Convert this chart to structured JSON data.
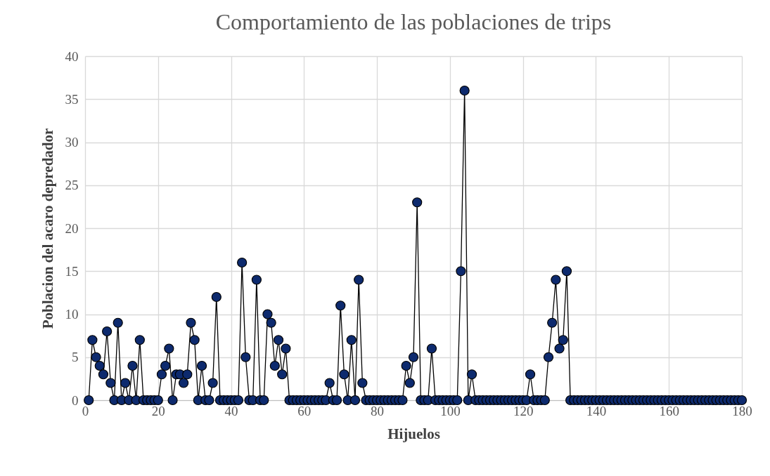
{
  "chart_data": {
    "type": "line",
    "title": "Comportamiento de las poblaciones de trips",
    "xlabel": "Hijuelos",
    "ylabel": "Poblacion del acaro depredador",
    "x": [
      1,
      2,
      3,
      4,
      5,
      6,
      7,
      8,
      9,
      10,
      11,
      12,
      13,
      14,
      15,
      16,
      17,
      18,
      19,
      20,
      21,
      22,
      23,
      24,
      25,
      26,
      27,
      28,
      29,
      30,
      31,
      32,
      33,
      34,
      35,
      36,
      37,
      38,
      39,
      40,
      41,
      42,
      43,
      44,
      45,
      46,
      47,
      48,
      49,
      50,
      51,
      52,
      53,
      54,
      55,
      56,
      57,
      58,
      59,
      60,
      61,
      62,
      63,
      64,
      65,
      66,
      67,
      68,
      69,
      70,
      71,
      72,
      73,
      74,
      75,
      76,
      77,
      78,
      79,
      80,
      81,
      82,
      83,
      84,
      85,
      86,
      87,
      88,
      89,
      90,
      91,
      92,
      93,
      94,
      95,
      96,
      97,
      98,
      99,
      100,
      101,
      102,
      103,
      104,
      105,
      106,
      107,
      108,
      109,
      110,
      111,
      112,
      113,
      114,
      115,
      116,
      117,
      118,
      119,
      120,
      121,
      122,
      123,
      124,
      125,
      126,
      127,
      128,
      129,
      130,
      131,
      132,
      133,
      134,
      135,
      136,
      137,
      138,
      139,
      140,
      141,
      142,
      143,
      144,
      145,
      146,
      147,
      148,
      149,
      150,
      151,
      152,
      153,
      154,
      155,
      156,
      157,
      158,
      159,
      160,
      161,
      162,
      163,
      164,
      165,
      166,
      167,
      168,
      169,
      170,
      171,
      172,
      173,
      174,
      175,
      176,
      177,
      178,
      179,
      180
    ],
    "series": [
      {
        "color": "#0d2a6e",
        "values": [
          0,
          7,
          5,
          4,
          3,
          8,
          2,
          0,
          9,
          0,
          2,
          0,
          4,
          0,
          7,
          0,
          0,
          0,
          0,
          0,
          3,
          4,
          6,
          0,
          3,
          3,
          2,
          3,
          9,
          7,
          0,
          4,
          0,
          0,
          2,
          12,
          0,
          0,
          0,
          0,
          0,
          0,
          16,
          5,
          0,
          0,
          14,
          0,
          0,
          10,
          9,
          4,
          7,
          3,
          6,
          0,
          0,
          0,
          0,
          0,
          0,
          0,
          0,
          0,
          0,
          0,
          2,
          0,
          0,
          11,
          3,
          0,
          7,
          0,
          14,
          2,
          0,
          0,
          0,
          0,
          0,
          0,
          0,
          0,
          0,
          0,
          0,
          4,
          2,
          5,
          23,
          0,
          0,
          0,
          6,
          0,
          0,
          0,
          0,
          0,
          0,
          0,
          15,
          36,
          0,
          3,
          0,
          0,
          0,
          0,
          0,
          0,
          0,
          0,
          0,
          0,
          0,
          0,
          0,
          0,
          0,
          3,
          0,
          0,
          0,
          0,
          5,
          9,
          14,
          6,
          7,
          15,
          0,
          0,
          0,
          0,
          0,
          0,
          0,
          0,
          0,
          0,
          0,
          0,
          0,
          0,
          0,
          0,
          0,
          0,
          0,
          0,
          0,
          0,
          0,
          0,
          0,
          0,
          0,
          0,
          0,
          0,
          0,
          0,
          0,
          0,
          0,
          0,
          0,
          0,
          0,
          0,
          0,
          0,
          0,
          0,
          0,
          0,
          0,
          0
        ]
      }
    ],
    "xlim": [
      0,
      180
    ],
    "xticks": [
      0,
      20,
      40,
      60,
      80,
      100,
      120,
      140,
      160,
      180
    ],
    "ylim": [
      0,
      40
    ],
    "yticks": [
      0,
      5,
      10,
      15,
      20,
      25,
      30,
      35,
      40
    ],
    "grid": true,
    "marker": "circle",
    "line_style": "solid"
  }
}
